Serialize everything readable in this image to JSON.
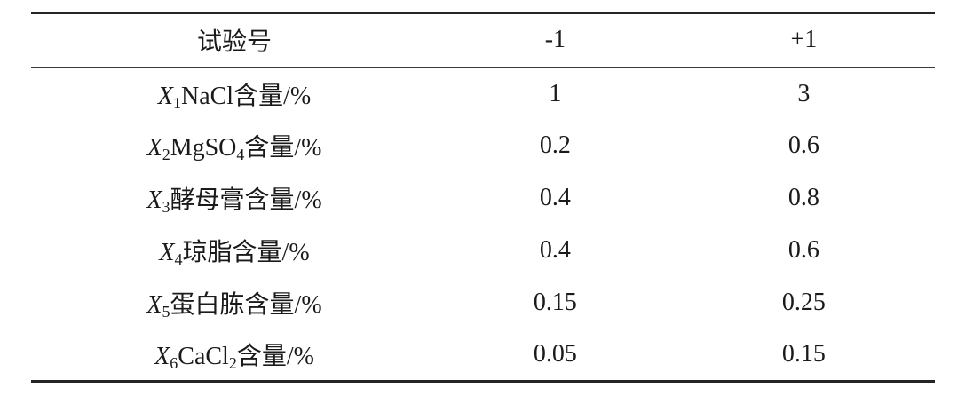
{
  "page": {
    "background": "#ffffff",
    "text_color": "#1a1a1a",
    "rule_color": "#242424"
  },
  "table": {
    "columns": [
      {
        "label": "试验号"
      },
      {
        "label": "-1"
      },
      {
        "label": "+1"
      }
    ],
    "rows": [
      {
        "var": "X",
        "var_sub": "1",
        "pre": "NaCl",
        "sub": "",
        "post": "含量/%",
        "low": "1",
        "high": "3"
      },
      {
        "var": "X",
        "var_sub": "2",
        "pre": "MgSO",
        "sub": "4",
        "post": "含量/%",
        "low": "0.2",
        "high": "0.6"
      },
      {
        "var": "X",
        "var_sub": "3",
        "pre": "酵母膏",
        "sub": "",
        "post": "含量/%",
        "low": "0.4",
        "high": "0.8"
      },
      {
        "var": "X",
        "var_sub": "4",
        "pre": "琼脂",
        "sub": "",
        "post": "含量/%",
        "low": "0.4",
        "high": "0.6"
      },
      {
        "var": "X",
        "var_sub": "5",
        "pre": "蛋白胨",
        "sub": "",
        "post": "含量/%",
        "low": "0.15",
        "high": "0.25"
      },
      {
        "var": "X",
        "var_sub": "6",
        "pre": "CaCl",
        "sub": "2",
        "post": "含量/%",
        "low": "0.05",
        "high": "0.15"
      }
    ]
  }
}
